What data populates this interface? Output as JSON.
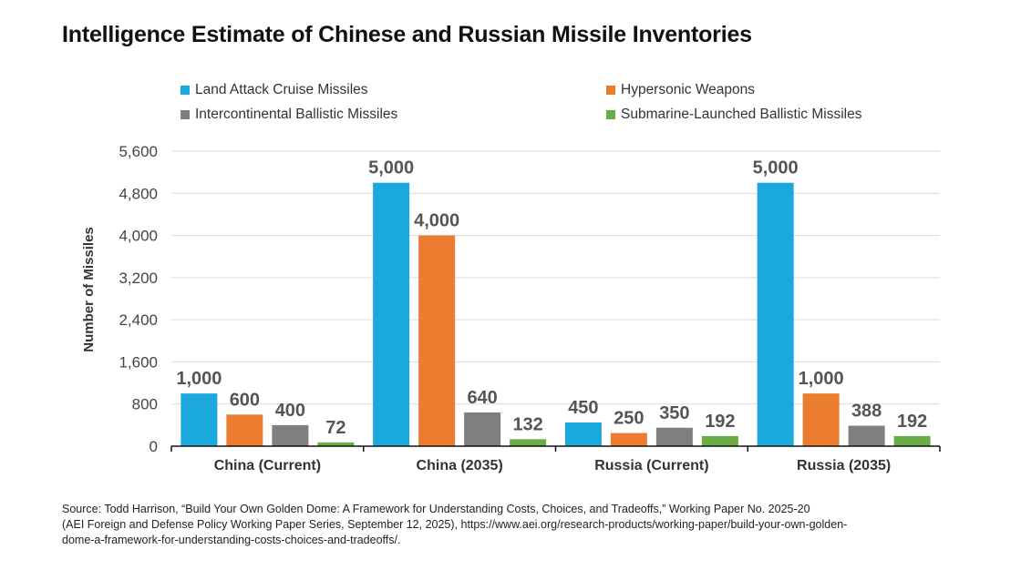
{
  "title": "Intelligence Estimate of Chinese and Russian Missile Inventories",
  "chart_data": {
    "type": "bar",
    "ylabel": "Number of Missiles",
    "xlabel": "",
    "ylim": [
      0,
      5600
    ],
    "yticks": [
      "0",
      "800",
      "1,600",
      "2,400",
      "3,200",
      "4,000",
      "4,800",
      "5,600"
    ],
    "ytick_values": [
      0,
      800,
      1600,
      2400,
      3200,
      4000,
      4800,
      5600
    ],
    "grid": true,
    "legend_position": "top",
    "categories": [
      "China (Current)",
      "China (2035)",
      "Russia (Current)",
      "Russia (2035)"
    ],
    "series": [
      {
        "name": "Land Attack Cruise Missiles",
        "color": "#1ba9dc",
        "values": [
          1000,
          5000,
          450,
          5000
        ],
        "labels": [
          "1,000",
          "5,000",
          "450",
          "5,000"
        ]
      },
      {
        "name": "Hypersonic Weapons",
        "color": "#ec7c30",
        "values": [
          600,
          4000,
          250,
          1000
        ],
        "labels": [
          "600",
          "4,000",
          "250",
          "1,000"
        ]
      },
      {
        "name": "Intercontinental Ballistic Missiles",
        "color": "#7f7f7f",
        "values": [
          400,
          640,
          350,
          388
        ],
        "labels": [
          "400",
          "640",
          "350",
          "388"
        ]
      },
      {
        "name": "Submarine-Launched Ballistic Missiles",
        "color": "#6aad44",
        "values": [
          72,
          132,
          192,
          192
        ],
        "labels": [
          "72",
          "132",
          "192",
          "192"
        ]
      }
    ]
  },
  "source": {
    "line1": "Source: Todd Harrison, “Build Your Own Golden Dome: A Framework for Understanding Costs, Choices, and Tradeoffs,” Working Paper No. 2025-20",
    "line2": "(AEI Foreign and Defense Policy Working Paper Series, September 12, 2025), https://www.aei.org/research-products/working-paper/build-your-own-golden-",
    "line3": "dome-a-framework-for-understanding-costs-choices-and-tradeoffs/."
  }
}
